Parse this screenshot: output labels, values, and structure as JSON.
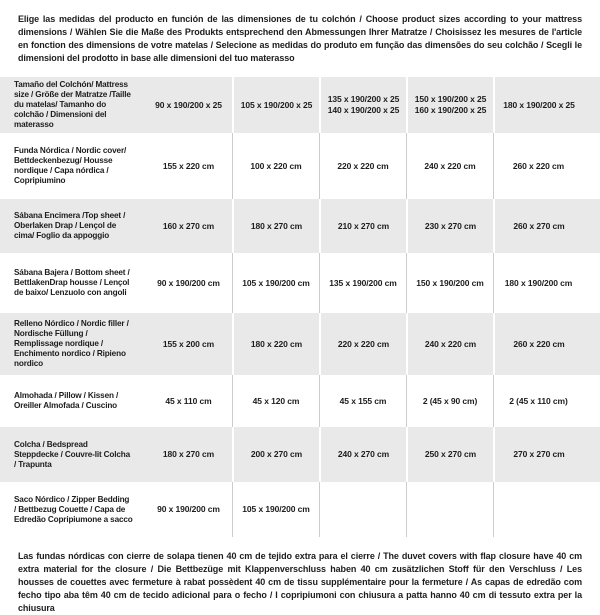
{
  "colors": {
    "row_stripe": "#e9e9e9",
    "text": "#1d1d1d",
    "separator_on_white": "#cccccc",
    "separator_on_gray": "#ffffff"
  },
  "intro": {
    "text": "Elige las medidas del producto en función de las dimensiones de tu colchón / Choose product sizes according to your mattress dimensions / Wählen Sie die Maße des Produkts entsprechend den Abmessungen Ihrer Matratze / Choisissez les mesures de l'article en fonction des dimensions de votre matelas / Selecione as medidas do produto em função das dimensões do seu colchão / Scegli le dimensioni del prodotto in base alle dimensioni del tuo materasso"
  },
  "table": {
    "rows": [
      {
        "label": "Tamaño del Colchón/ Mattress size / Größe der Matratze /Taille du matelas/ Tamanho do colchão / Dimensioni del materasso",
        "values": [
          "90 x 190/200 x 25",
          "105 x 190/200 x 25",
          "135 x 190/200 x 25\n140 x 190/200 x 25",
          "150 x 190/200 x 25\n160 x 190/200 x 25",
          "180 x 190/200 x 25"
        ]
      },
      {
        "label": "Funda Nórdica /  Nordic cover/ Bettdeckenbezug/ Housse nordique  / Capa nórdica / Copripiumino",
        "values": [
          "155 x 220 cm",
          "100 x 220 cm",
          "220 x 220 cm",
          "240 x 220 cm",
          "260 x 220 cm"
        ]
      },
      {
        "label": "Sábana Encimera /Top sheet / Oberlaken Drap / Lençol de cima/ Foglio da appoggio",
        "values": [
          "160 x 270 cm",
          "180 x 270 cm",
          "210 x 270 cm",
          "230 x 270 cm",
          "260 x 270 cm"
        ]
      },
      {
        "label": "Sábana Bajera / Bottom sheet / BettlakenDrap housse / Lençol de baixo/ Lenzuolo con angoli",
        "values": [
          "90 x 190/200 cm",
          "105 x 190/200 cm",
          "135 x 190/200 cm",
          "150 x 190/200 cm",
          "180 x 190/200 cm"
        ]
      },
      {
        "label": "Relleno Nórdico / Nordic filler / Nordische Füllung / Remplissage nordique / Enchimento nordico / Ripieno nordico",
        "values": [
          "155 x 200 cm",
          "180 x 220 cm",
          "220 x 220 cm",
          "240 x 220 cm",
          "260 x 220 cm"
        ]
      },
      {
        "label": "Almohada  / Pillow / Kissen / Oreiller Almofada / Cuscino",
        "values": [
          "45 x 110 cm",
          "45 x 120 cm",
          "45 x 155 cm",
          "2 (45 x 90 cm)",
          "2 (45 x 110 cm)"
        ]
      },
      {
        "label": "Colcha / Bedspread Steppdecke / Couvre-lit Colcha / Trapunta",
        "values": [
          "180 x 270 cm",
          "200 x 270 cm",
          "240 x 270 cm",
          "250 x 270 cm",
          "270 x 270 cm"
        ]
      },
      {
        "label": "Saco Nórdico / Zipper Bedding / Bettbezug Couette  / Capa de Edredão Copripiumone a sacco",
        "values": [
          "90 x 190/200 cm",
          "105 x 190/200 cm",
          "",
          "",
          ""
        ]
      }
    ]
  },
  "footnote": {
    "text": "Las fundas nórdicas con cierre de solapa tienen 40 cm de tejido extra para el cierre  / The duvet covers with flap closure have 40 cm extra material for the closure / Die Bettbezüge mit Klappenverschluss haben 40 cm zusätzlichen Stoff für den Verschluss / Les housses de couettes avec fermeture à rabat possèdent 40 cm de tissu supplémentaire pour la fermeture / As capas de edredão com fecho tipo aba têm 40 cm de tecido adicional para o fecho / I copripiumoni con chiusura a patta hanno 40 cm di tessuto extra per la chiusura"
  }
}
